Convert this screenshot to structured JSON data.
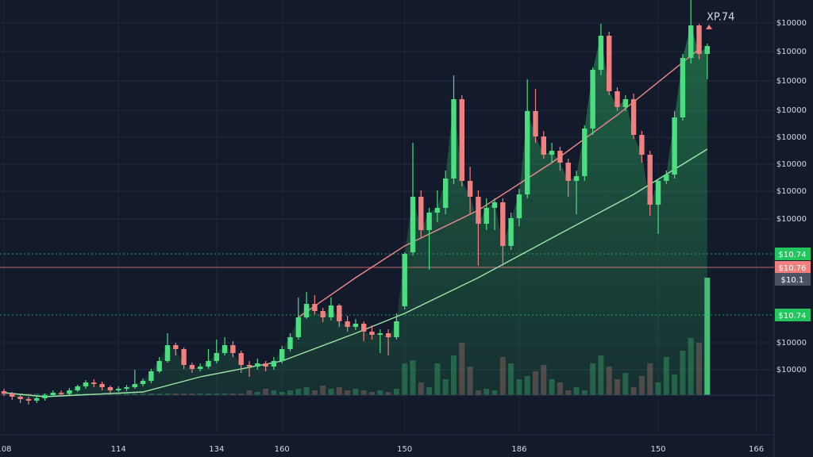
{
  "chart_data": {
    "type": "candlestick",
    "annotation": "XP.74",
    "categories": [
      "108",
      null,
      null,
      null,
      null,
      null,
      null,
      null,
      null,
      null,
      null,
      null,
      null,
      null,
      "114",
      null,
      null,
      null,
      null,
      null,
      null,
      null,
      null,
      null,
      null,
      null,
      "134",
      null,
      null,
      null,
      null,
      null,
      null,
      null,
      "160",
      null,
      null,
      null,
      null,
      null,
      null,
      null,
      null,
      null,
      null,
      null,
      null,
      null,
      null,
      "150",
      null,
      null,
      null,
      null,
      null,
      null,
      null,
      null,
      null,
      null,
      null,
      null,
      null,
      "186",
      null,
      null,
      null,
      null,
      null,
      null,
      null,
      null,
      null,
      null,
      null,
      null,
      null,
      null,
      null,
      null,
      "150",
      null,
      null,
      null,
      null,
      null,
      null,
      null,
      null,
      null,
      null,
      null,
      "166",
      null
    ],
    "open": [
      7,
      4,
      0,
      -3,
      -5,
      -2,
      2,
      5,
      4,
      8,
      13,
      18,
      16,
      12,
      8,
      10,
      12,
      16,
      20,
      32,
      45,
      65,
      60,
      40,
      35,
      38,
      45,
      55,
      65,
      55,
      40,
      38,
      42,
      38,
      45,
      60,
      75,
      100,
      117,
      108,
      100,
      115,
      95,
      88,
      92,
      82,
      78,
      80,
      75,
      114,
      182,
      252,
      210,
      232,
      238,
      275,
      375,
      272,
      252,
      218,
      238,
      245,
      190,
      225,
      255,
      360,
      328,
      305,
      310,
      295,
      272,
      278,
      338,
      412,
      455,
      385,
      365,
      375,
      330,
      305,
      242,
      272,
      280,
      352,
      427,
      468,
      432,
      null,
      null,
      null,
      null,
      null,
      null,
      null
    ],
    "high": [
      10,
      6,
      3,
      0,
      1,
      4,
      8,
      8,
      11,
      15,
      21,
      22,
      19,
      14,
      13,
      15,
      34,
      23,
      35,
      50,
      80,
      68,
      62,
      43,
      42,
      60,
      72,
      75,
      70,
      58,
      45,
      48,
      45,
      50,
      64,
      80,
      125,
      132,
      128,
      112,
      125,
      117,
      102,
      98,
      95,
      90,
      85,
      85,
      105,
      182,
      320,
      260,
      238,
      260,
      285,
      405,
      380,
      290,
      260,
      250,
      250,
      250,
      232,
      262,
      400,
      388,
      335,
      320,
      315,
      300,
      285,
      342,
      415,
      470,
      460,
      390,
      380,
      382,
      335,
      310,
      275,
      285,
      360,
      432,
      500,
      470,
      445,
      null,
      null,
      null,
      null,
      null,
      null,
      null
    ],
    "low": [
      1,
      -4,
      -8,
      -10,
      -8,
      -5,
      0,
      1,
      2,
      6,
      10,
      12,
      8,
      5,
      6,
      7,
      10,
      13,
      17,
      30,
      43,
      52,
      35,
      30,
      32,
      35,
      42,
      52,
      50,
      30,
      25,
      34,
      32,
      34,
      42,
      57,
      72,
      98,
      104,
      94,
      96,
      88,
      82,
      84,
      70,
      72,
      55,
      52,
      72,
      110,
      178,
      200,
      160,
      220,
      230,
      268,
      265,
      230,
      165,
      210,
      210,
      165,
      185,
      215,
      250,
      320,
      300,
      295,
      285,
      252,
      230,
      272,
      330,
      405,
      380,
      360,
      360,
      325,
      295,
      228,
      205,
      268,
      275,
      348,
      420,
      425,
      400,
      null,
      null,
      null,
      null,
      null,
      null,
      null
    ],
    "close": [
      4,
      0,
      -3,
      -5,
      -2,
      2,
      5,
      4,
      8,
      13,
      18,
      16,
      12,
      8,
      10,
      12,
      16,
      20,
      32,
      45,
      65,
      60,
      40,
      35,
      38,
      45,
      55,
      65,
      55,
      40,
      38,
      42,
      38,
      45,
      60,
      75,
      100,
      117,
      108,
      100,
      115,
      95,
      88,
      92,
      82,
      78,
      80,
      75,
      95,
      180,
      252,
      210,
      232,
      238,
      275,
      375,
      272,
      252,
      218,
      238,
      245,
      190,
      225,
      255,
      360,
      328,
      305,
      310,
      295,
      272,
      278,
      338,
      412,
      455,
      385,
      365,
      375,
      330,
      305,
      242,
      272,
      280,
      352,
      427,
      468,
      432,
      442,
      null,
      null,
      null,
      null,
      null,
      null,
      null
    ],
    "volume": [
      1,
      1,
      1,
      1,
      1,
      1,
      1,
      1,
      1,
      1,
      1,
      1,
      1,
      1,
      1,
      1,
      1,
      1,
      1,
      1,
      1,
      1,
      1,
      1,
      1,
      1,
      1,
      1,
      1,
      1,
      3,
      2,
      4,
      3,
      2,
      3,
      4,
      5,
      3,
      6,
      4,
      5,
      3,
      4,
      3,
      2,
      3,
      2,
      4,
      20,
      22,
      8,
      5,
      20,
      10,
      25,
      33,
      18,
      3,
      4,
      3,
      24,
      20,
      10,
      12,
      15,
      19,
      10,
      8,
      3,
      5,
      3,
      20,
      25,
      18,
      10,
      14,
      5,
      12,
      20,
      8,
      24,
      13,
      28,
      36,
      33,
      74,
      null,
      null,
      null,
      null,
      null,
      null,
      null
    ],
    "up_color": "#4ade80",
    "down_color": "#f07f7f",
    "ylim": [
      -76,
      500
    ],
    "yticks": [
      {
        "value": 471,
        "label": "$10000"
      },
      {
        "value": 435,
        "label": "$10000"
      },
      {
        "value": 398,
        "label": "$10000"
      },
      {
        "value": 361,
        "label": "$10000"
      },
      {
        "value": 327,
        "label": "$10000"
      },
      {
        "value": 293,
        "label": "$10000"
      },
      {
        "value": 259,
        "label": "$10000"
      },
      {
        "value": 224,
        "label": "$10000"
      },
      {
        "value": 68,
        "label": "$10000"
      },
      {
        "value": 34,
        "label": "$10000"
      }
    ],
    "vlim": [
      0,
      100
    ],
    "ma": [
      {
        "color": "#9be8a8",
        "x": [
          0,
          5,
          17,
          24,
          34,
          43,
          49,
          58,
          67,
          77,
          86
        ],
        "values": [
          5,
          0,
          6,
          25,
          45,
          80,
          105,
          150,
          200,
          255,
          312
        ]
      },
      {
        "color": "#f08a8a",
        "x": [
          36,
          43,
          49,
          58,
          67,
          75,
          85
        ],
        "values": [
          100,
          150,
          190,
          235,
          295,
          355,
          438
        ]
      }
    ],
    "price_lines": [
      {
        "label": "$10.74",
        "value": 180,
        "color": "#22c55e",
        "style": "dotted"
      },
      {
        "label": "$10.76",
        "value": 163,
        "color": "#f07f7f",
        "style": "solid"
      },
      {
        "label": "$10.1",
        "value": 148,
        "color": "#4b5263",
        "style": "none"
      },
      {
        "label": "$10.74",
        "value": 103,
        "color": "#22c55e",
        "style": "dotted"
      }
    ],
    "grid": true
  }
}
